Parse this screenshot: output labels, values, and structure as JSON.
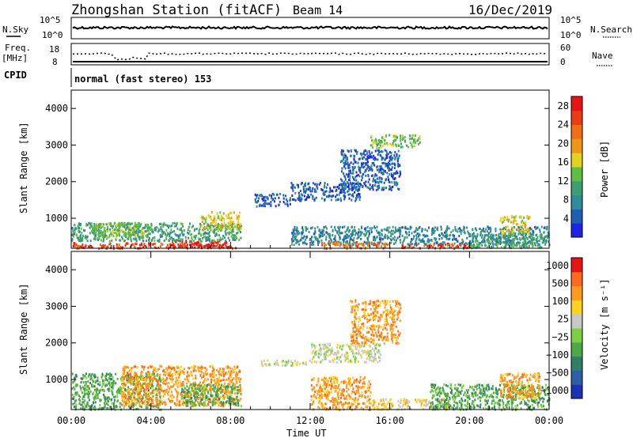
{
  "header": {
    "station": "Zhongshan Station (fitACF)",
    "beam": "Beam 14",
    "date": "16/Dec/2019"
  },
  "strips": {
    "nsky_label": "N.Sky",
    "nsky_ticks": [
      "10^5",
      "10^0"
    ],
    "nsearch_label": "N.Search",
    "nsearch_ticks": [
      "10^5",
      "10^0"
    ],
    "freq_label_1": "Freq.",
    "freq_label_2": "[MHz]",
    "freq_ticks": [
      "18",
      "8"
    ],
    "nave_label": "Nave",
    "nave_ticks": [
      "60",
      "0"
    ],
    "cpid_label": "CPID",
    "cpid_text": "normal (fast stereo) 153"
  },
  "colors": {
    "power": [
      "#1e23e6",
      "#1f5fb3",
      "#2f8a9a",
      "#3f9e6e",
      "#5fbf44",
      "#e6d21e",
      "#f09614",
      "#f06e14",
      "#eb3c14",
      "#e61414"
    ],
    "velocity": [
      "#1a32b4",
      "#2c5fa8",
      "#2f7f68",
      "#4ea847",
      "#7ccf3f",
      "#c8c8c8",
      "#ffd21e",
      "#ff9a1e",
      "#ff6a1e",
      "#e61414"
    ]
  },
  "chart_data": [
    {
      "type": "heatmap",
      "name": "power",
      "xlabel": "",
      "ylabel": "Slant Range [km]",
      "ylim": [
        180,
        4500
      ],
      "y_ticks": [
        1000,
        2000,
        3000,
        4000
      ],
      "xlim": [
        0,
        24
      ],
      "x_ticks": [
        0,
        4,
        8,
        12,
        16,
        20,
        24
      ],
      "colorbar_label": "Power [dB]",
      "colorbar_ticks": [
        4,
        8,
        12,
        16,
        20,
        24,
        28
      ],
      "colorbar_range": [
        0,
        30
      ],
      "regions": [
        {
          "t": [
            0,
            8.3
          ],
          "r": [
            200,
            350
          ],
          "level": 8
        },
        {
          "t": [
            5.0,
            7.8
          ],
          "r": [
            230,
            420
          ],
          "level": 9
        },
        {
          "t": [
            0,
            8.5
          ],
          "r": [
            400,
            900
          ],
          "level": 3
        },
        {
          "t": [
            1,
            4
          ],
          "r": [
            500,
            900
          ],
          "level": 4
        },
        {
          "t": [
            6.5,
            8.5
          ],
          "r": [
            700,
            1200
          ],
          "level": 5
        },
        {
          "t": [
            9.2,
            11.0
          ],
          "r": [
            1350,
            1700
          ],
          "level": 1
        },
        {
          "t": [
            11.0,
            14.5
          ],
          "r": [
            1500,
            2000
          ],
          "level": 1
        },
        {
          "t": [
            13.5,
            16.5
          ],
          "r": [
            1800,
            2900
          ],
          "level": 1
        },
        {
          "t": [
            11.0,
            24
          ],
          "r": [
            300,
            800
          ],
          "level": 2
        },
        {
          "t": [
            12.5,
            16
          ],
          "r": [
            200,
            380
          ],
          "level": 7
        },
        {
          "t": [
            16.5,
            20
          ],
          "r": [
            200,
            320
          ],
          "level": 8
        },
        {
          "t": [
            20,
            23.8
          ],
          "r": [
            220,
            600
          ],
          "level": 3
        },
        {
          "t": [
            21.5,
            23
          ],
          "r": [
            600,
            1100
          ],
          "level": 5
        },
        {
          "t": [
            15,
            17.5
          ],
          "r": [
            2950,
            3300
          ],
          "level": 4
        }
      ]
    },
    {
      "type": "heatmap",
      "name": "velocity",
      "xlabel": "Time UT",
      "ylabel": "Slant Range [km]",
      "ylim": [
        180,
        4500
      ],
      "y_ticks": [
        1000,
        2000,
        3000,
        4000
      ],
      "xlim": [
        0,
        24
      ],
      "x_ticks": [
        0,
        4,
        8,
        12,
        16,
        20,
        24
      ],
      "x_tick_labels": [
        "00:00",
        "04:00",
        "08:00",
        "12:00",
        "16:00",
        "20:00",
        "00:00"
      ],
      "colorbar_label": "Velocity [m s⁻¹]",
      "colorbar_ticks": [
        "1000",
        "500",
        "100",
        "25",
        "−25",
        "−100",
        "−500",
        "−1000"
      ],
      "regions": [
        {
          "t": [
            0,
            4.5
          ],
          "r": [
            200,
            1200
          ],
          "level": 3
        },
        {
          "t": [
            2.5,
            8.5
          ],
          "r": [
            300,
            1400
          ],
          "level": 7
        },
        {
          "t": [
            5.5,
            8.5
          ],
          "r": [
            300,
            900
          ],
          "level": 3
        },
        {
          "t": [
            9.5,
            12.0
          ],
          "r": [
            1400,
            1550
          ],
          "level": 5
        },
        {
          "t": [
            12.0,
            15.5
          ],
          "r": [
            1500,
            2000
          ],
          "level": 5
        },
        {
          "t": [
            14.0,
            16.5
          ],
          "r": [
            2000,
            3200
          ],
          "level": 7
        },
        {
          "t": [
            12,
            15
          ],
          "r": [
            200,
            1100
          ],
          "level": 7
        },
        {
          "t": [
            15,
            19
          ],
          "r": [
            200,
            500
          ],
          "level": 6
        },
        {
          "t": [
            18,
            24
          ],
          "r": [
            200,
            900
          ],
          "level": 3
        },
        {
          "t": [
            21.5,
            23.5
          ],
          "r": [
            500,
            1200
          ],
          "level": 7
        }
      ]
    }
  ]
}
